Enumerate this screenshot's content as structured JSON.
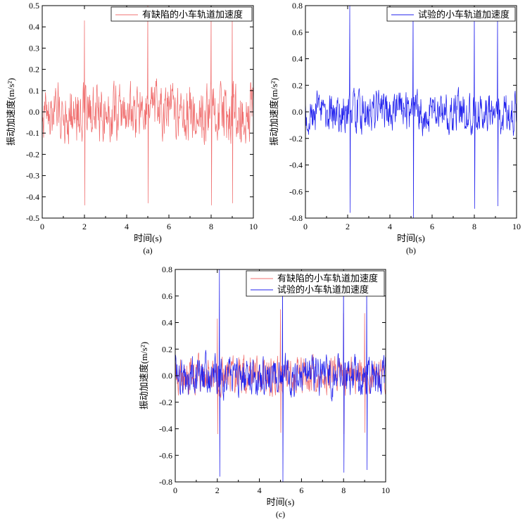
{
  "chart_data": [
    {
      "type": "line",
      "caption": "(a)",
      "xlabel": "时间(s)",
      "ylabel": "振动加速度(m/s²)",
      "xlim": [
        0,
        10
      ],
      "ylim": [
        -0.5,
        0.5
      ],
      "xticks": [
        "0",
        "2",
        "4",
        "6",
        "8",
        "10"
      ],
      "yticks": [
        "-0.5",
        "-0.4",
        "-0.3",
        "-0.2",
        "-0.1",
        "0.0",
        "0.1",
        "0.2",
        "0.3",
        "0.4",
        "0.5"
      ],
      "legend": "top-right",
      "series": [
        {
          "name": "有缺陷的小车轨道加速度",
          "color": "#f07070",
          "noise_amplitude": 0.15,
          "spikes": [
            [
              2.0,
              0.43,
              -0.44
            ],
            [
              5.0,
              0.5,
              -0.43
            ],
            [
              8.0,
              0.47,
              -0.44
            ],
            [
              9.0,
              0.47,
              -0.43
            ]
          ]
        }
      ]
    },
    {
      "type": "line",
      "caption": "(b)",
      "xlabel": "时间(s)",
      "ylabel": "振动加速度(m/s²)",
      "xlim": [
        0,
        10
      ],
      "ylim": [
        -0.8,
        0.8
      ],
      "xticks": [
        "0",
        "2",
        "4",
        "6",
        "8",
        "10"
      ],
      "yticks": [
        "-0.8",
        "-0.6",
        "-0.4",
        "-0.2",
        "0.0",
        "0.2",
        "0.4",
        "0.6",
        "0.8"
      ],
      "legend": "top-right",
      "series": [
        {
          "name": "试验的小车轨道加速度",
          "color": "#2222ee",
          "noise_amplitude": 0.17,
          "spikes": [
            [
              2.1,
              0.8,
              -0.76
            ],
            [
              5.1,
              0.78,
              -0.8
            ],
            [
              8.0,
              0.78,
              -0.73
            ],
            [
              9.1,
              0.74,
              -0.71
            ]
          ]
        }
      ]
    },
    {
      "type": "line",
      "caption": "(c)",
      "xlabel": "时间(s)",
      "ylabel": "振动加速度(m/s²)",
      "xlim": [
        0,
        10
      ],
      "ylim": [
        -0.8,
        0.8
      ],
      "xticks": [
        "0",
        "2",
        "4",
        "6",
        "8",
        "10"
      ],
      "yticks": [
        "-0.8",
        "-0.6",
        "-0.4",
        "-0.2",
        "0.0",
        "0.2",
        "0.4",
        "0.6",
        "0.8"
      ],
      "legend": "top-right",
      "series": [
        {
          "name": "有缺陷的小车轨道加速度",
          "color": "#f07070",
          "noise_amplitude": 0.15,
          "spikes": [
            [
              2.0,
              0.43,
              -0.44
            ],
            [
              5.0,
              0.5,
              -0.43
            ],
            [
              8.0,
              0.47,
              -0.44
            ],
            [
              9.0,
              0.47,
              -0.43
            ]
          ]
        },
        {
          "name": "试验的小车轨道加速度",
          "color": "#2222ee",
          "noise_amplitude": 0.17,
          "spikes": [
            [
              2.1,
              0.8,
              -0.76
            ],
            [
              5.1,
              0.78,
              -0.8
            ],
            [
              8.0,
              0.78,
              -0.73
            ],
            [
              9.1,
              0.74,
              -0.71
            ]
          ]
        }
      ]
    }
  ]
}
